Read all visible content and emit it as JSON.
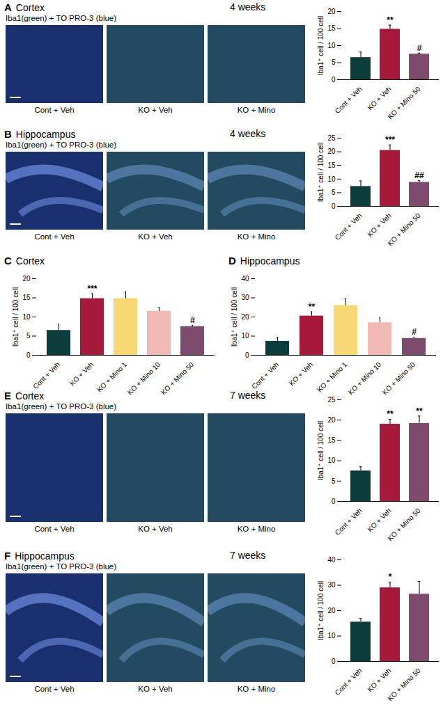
{
  "chart_data": [
    {
      "type": "bar",
      "panel": "A",
      "title": "Cortex",
      "subtitle": "4 weeks",
      "stain_label": "Iba1(green) + TO PRO-3 (blue)",
      "image_labels": [
        "Cont + Veh",
        "KO + Veh",
        "KO + Mino"
      ],
      "y_label": "Iba1⁺ cell / 100 cell",
      "categories": [
        "Cont + Veh",
        "KO + Veh",
        "KO + Mino 50"
      ],
      "values": [
        6.5,
        14.8,
        7.5
      ],
      "errors": [
        1.6,
        1.2,
        0.3
      ],
      "significance": [
        null,
        "**",
        "#"
      ],
      "colors": [
        "#0b3d3a",
        "#a5193b",
        "#7b4a6c"
      ],
      "ylim": [
        0,
        20
      ],
      "yticks": [
        0,
        5,
        10,
        15,
        20
      ]
    },
    {
      "type": "bar",
      "panel": "B",
      "title": "Hippocampus",
      "subtitle": "4 weeks",
      "stain_label": "Iba1(green) + TO PRO-3 (blue)",
      "image_labels": [
        "Cont + Veh",
        "KO + Veh",
        "KO + Mino"
      ],
      "y_label": "Iba1⁺ cell / 100 cell",
      "categories": [
        "Cont + Veh",
        "KO + Veh",
        "KO + Mino 50"
      ],
      "values": [
        7.3,
        20.5,
        8.8
      ],
      "errors": [
        2.0,
        2.0,
        0.6
      ],
      "significance": [
        null,
        "***",
        "##"
      ],
      "colors": [
        "#0b3d3a",
        "#a5193b",
        "#7b4a6c"
      ],
      "ylim": [
        0,
        25
      ],
      "yticks": [
        0,
        5,
        10,
        15,
        20,
        25
      ]
    },
    {
      "type": "bar",
      "panel": "C",
      "title": "Cortex",
      "y_label": "Iba1⁺ cell / 100 cell",
      "categories": [
        "Cont + Veh",
        "KO + Veh",
        "KO + Mino 1",
        "KO + Mino 10",
        "KO + Mino 50"
      ],
      "values": [
        6.5,
        14.8,
        14.8,
        11.5,
        7.5
      ],
      "errors": [
        1.6,
        1.3,
        1.8,
        1.0,
        0.3
      ],
      "significance": [
        null,
        "***",
        null,
        null,
        "#"
      ],
      "colors": [
        "#0b3d3a",
        "#a5193b",
        "#f7d774",
        "#f0b9b3",
        "#7b4a6c"
      ],
      "ylim": [
        0,
        20
      ],
      "yticks": [
        0,
        5,
        10,
        15,
        20
      ]
    },
    {
      "type": "bar",
      "panel": "D",
      "title": "Hippocampus",
      "y_label": "Iba1⁺ cell / 100 cell",
      "categories": [
        "Cont + Veh",
        "KO + Veh",
        "KO + Mino 1",
        "KO + Mino 10",
        "KO + Mino 50"
      ],
      "values": [
        7.3,
        20.5,
        26.0,
        17.0,
        8.8
      ],
      "errors": [
        2.0,
        2.2,
        3.5,
        2.5,
        0.6
      ],
      "significance": [
        null,
        "**",
        null,
        null,
        "#"
      ],
      "colors": [
        "#0b3d3a",
        "#a5193b",
        "#f7d774",
        "#f0b9b3",
        "#7b4a6c"
      ],
      "ylim": [
        0,
        40
      ],
      "yticks": [
        0,
        10,
        20,
        30,
        40
      ]
    },
    {
      "type": "bar",
      "panel": "E",
      "title": "Cortex",
      "subtitle": "7 weeks",
      "stain_label": "Iba1(green) + TO PRO-3 (blue)",
      "image_labels": [
        "Cont + Veh",
        "KO + Veh",
        "KO + Mino"
      ],
      "y_label": "Iba1⁺ cell / 100 cell",
      "categories": [
        "Cont + Veh",
        "KO + Veh",
        "KO + Mino 50"
      ],
      "values": [
        7.5,
        19.0,
        19.2
      ],
      "errors": [
        1.0,
        1.2,
        1.8
      ],
      "significance": [
        null,
        "**",
        "**"
      ],
      "colors": [
        "#0b3d3a",
        "#a5193b",
        "#7b4a6c"
      ],
      "ylim": [
        0,
        25
      ],
      "yticks": [
        0,
        5,
        10,
        15,
        20,
        25
      ]
    },
    {
      "type": "bar",
      "panel": "F",
      "title": "Hippocampus",
      "subtitle": "7 weeks",
      "stain_label": "Iba1(green) + TO PRO-3 (blue)",
      "image_labels": [
        "Cont + Veh",
        "KO + Veh",
        "KO + Mino"
      ],
      "y_label": "Iba1⁺ cell / 100 cell",
      "categories": [
        "Cont + Veh",
        "KO + Veh",
        "KO + Mino 50"
      ],
      "values": [
        15.5,
        29.0,
        26.5
      ],
      "errors": [
        1.5,
        2.2,
        5.0
      ],
      "significance": [
        null,
        "*",
        null
      ],
      "colors": [
        "#0b3d3a",
        "#a5193b",
        "#7b4a6c"
      ],
      "ylim": [
        0,
        40
      ],
      "yticks": [
        0,
        10,
        20,
        30,
        40
      ]
    }
  ]
}
